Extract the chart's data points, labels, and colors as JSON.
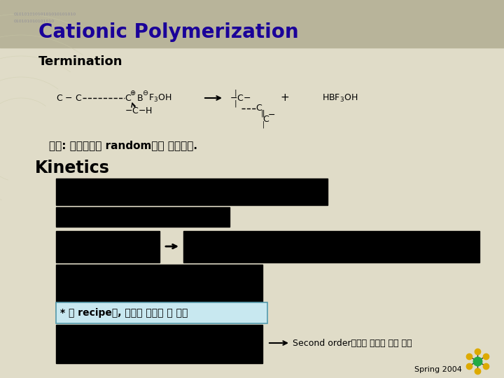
{
  "title": "Cationic Polymerization",
  "subtitle": "Termination",
  "bg_top_color": "#b8b49a",
  "slide_bg": "#e0dcc8",
  "title_color": "#1a0099",
  "title_fontsize": 20,
  "subtitle_fontsize": 13,
  "korean_text1": "문제: 정지반응이 random하게 일어난다.",
  "kinetics_label": "Kinetics",
  "note_text": "* 가 recipe임, 반응을 조절할 수 있음",
  "second_order_text": "Second order이모로 반응이 매우 빠름",
  "spring_text": "Spring 2004"
}
